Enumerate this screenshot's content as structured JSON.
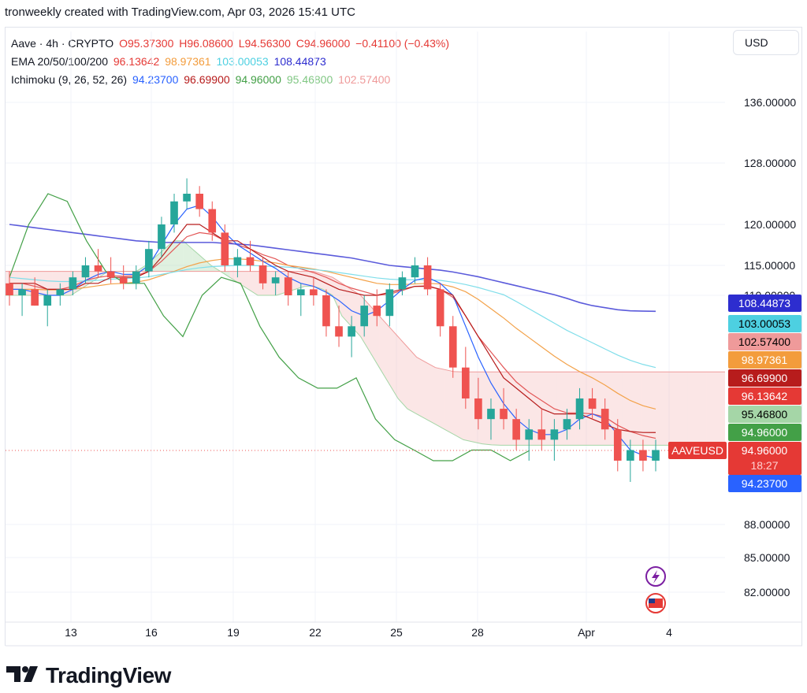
{
  "header": {
    "text": "tronweekly created with TradingView.com, Apr 03, 2026 15:41 UTC"
  },
  "legend": {
    "symbol": "Aave · 4h · CRYPTO",
    "o": "O95.37300",
    "h": "H96.08600",
    "l": "L94.56300",
    "c": "C94.96000",
    "change": "−0.41100 (−0.43%)",
    "ema_title": "EMA 20/50/100/200",
    "ema_values": [
      "96.13642",
      "98.97361",
      "103.00053",
      "108.44873"
    ],
    "ichi_title": "Ichimoku (9, 26, 52, 26)",
    "ichi_values": [
      "94.23700",
      "96.69900",
      "94.96000",
      "95.46800",
      "102.57400"
    ]
  },
  "currency": "USD",
  "footer": {
    "brand": "TradingView"
  },
  "colors": {
    "up": "#26a69a",
    "down": "#ef5350",
    "ema20": "#e35757",
    "ema50": "#f3a24a",
    "ema100": "#80deea",
    "ema200": "#5b5bdb",
    "tenkan": "#2962ff",
    "kijun": "#b71c1c",
    "chikou": "#43a047",
    "spanA": "#a5d6a7",
    "spanB": "#ef9a9a"
  },
  "chart_data": {
    "type": "line",
    "title": "Aave · 4h · CRYPTO",
    "timeframe": "4h",
    "y_ticks": [
      136,
      128,
      120,
      115,
      110,
      88,
      85,
      82
    ],
    "y_tick_labels": [
      "136.00000",
      "128.00000",
      "120.00000",
      "115.00000",
      "110.00000",
      "88.00000",
      "85.00000",
      "82.00000"
    ],
    "x_labels": [
      "13",
      "16",
      "19",
      "22",
      "25",
      "28",
      "Apr",
      "4"
    ],
    "last_price": 94.96,
    "symbol_tag": "AAVEUSD",
    "countdown": "18:27",
    "price_badges": [
      {
        "label": "108.44873",
        "value": 108.44873,
        "series": "EMA 200",
        "color": "#2d2dcf"
      },
      {
        "label": "103.00053",
        "value": 103.00053,
        "series": "EMA 100",
        "color": "#4dd0e1"
      },
      {
        "label": "102.57400",
        "value": 102.574,
        "series": "Ichimoku Span B",
        "color": "#ef9a9a"
      },
      {
        "label": "98.97361",
        "value": 98.97361,
        "series": "EMA 50",
        "color": "#f39c3c"
      },
      {
        "label": "96.69900",
        "value": 96.699,
        "series": "Kijun",
        "color": "#b71c1c"
      },
      {
        "label": "96.13642",
        "value": 96.13642,
        "series": "EMA 20",
        "color": "#e53935"
      },
      {
        "label": "95.46800",
        "value": 95.468,
        "series": "Ichimoku Span A",
        "color": "#a5d6a7"
      },
      {
        "label": "94.96000",
        "value": 94.96,
        "series": "Chikou",
        "color": "#43a047"
      },
      {
        "label": "94.96000",
        "value": 94.96,
        "series": "AAVEUSD",
        "color": "#e53935"
      },
      {
        "label": "94.23700",
        "value": 94.237,
        "series": "Tenkan",
        "color": "#2962ff"
      }
    ],
    "candles": [
      [
        112,
        114,
        109,
        110
      ],
      [
        110,
        112,
        108,
        111
      ],
      [
        111,
        113,
        109,
        109
      ],
      [
        109,
        111,
        107,
        110
      ],
      [
        110,
        112,
        109,
        111
      ],
      [
        111,
        114,
        110,
        113
      ],
      [
        113,
        116,
        112,
        115
      ],
      [
        115,
        117,
        113,
        114
      ],
      [
        114,
        116,
        112,
        113
      ],
      [
        113,
        115,
        111,
        112
      ],
      [
        112,
        115,
        111,
        114
      ],
      [
        114,
        118,
        113,
        117
      ],
      [
        117,
        121,
        116,
        120
      ],
      [
        120,
        124,
        119,
        123
      ],
      [
        123,
        126,
        122,
        124
      ],
      [
        124,
        125,
        121,
        122
      ],
      [
        122,
        123,
        118,
        119
      ],
      [
        119,
        120,
        114,
        115
      ],
      [
        115,
        117,
        113,
        116
      ],
      [
        116,
        118,
        114,
        115
      ],
      [
        115,
        116,
        111,
        112
      ],
      [
        112,
        114,
        110,
        113
      ],
      [
        113,
        114,
        109,
        110
      ],
      [
        110,
        112,
        108,
        111
      ],
      [
        111,
        113,
        109,
        110
      ],
      [
        110,
        111,
        106,
        107
      ],
      [
        107,
        109,
        105,
        106
      ],
      [
        106,
        108,
        104,
        107
      ],
      [
        107,
        110,
        106,
        109
      ],
      [
        109,
        111,
        107,
        108
      ],
      [
        108,
        112,
        107,
        111
      ],
      [
        111,
        114,
        110,
        113
      ],
      [
        113,
        116,
        112,
        115
      ],
      [
        115,
        116,
        110,
        111
      ],
      [
        111,
        112,
        106,
        107
      ],
      [
        107,
        108,
        102,
        103
      ],
      [
        103,
        105,
        99,
        100
      ],
      [
        100,
        102,
        97,
        98
      ],
      [
        98,
        100,
        96,
        99
      ],
      [
        99,
        101,
        97,
        98
      ],
      [
        98,
        99,
        95,
        96
      ],
      [
        96,
        98,
        94,
        97
      ],
      [
        97,
        99,
        95,
        96
      ],
      [
        96,
        98,
        94,
        97
      ],
      [
        97,
        99,
        96,
        98
      ],
      [
        98,
        101,
        97,
        100
      ],
      [
        100,
        101,
        98,
        99
      ],
      [
        99,
        100,
        96,
        97
      ],
      [
        97,
        98,
        93,
        94
      ],
      [
        94,
        96,
        92,
        95
      ],
      [
        95,
        96,
        93,
        94
      ],
      [
        94,
        96,
        93,
        95
      ]
    ],
    "series": [
      {
        "name": "EMA 20",
        "values": [
          112,
          112,
          111.5,
          111,
          111,
          111.5,
          112.5,
          113,
          113.3,
          113.2,
          113.3,
          114,
          115.5,
          117,
          118.5,
          119,
          118.8,
          118,
          117.5,
          117,
          116.3,
          115.8,
          115,
          114.4,
          113.8,
          113,
          112,
          111.2,
          110.6,
          110,
          110.2,
          110.8,
          111.5,
          111.6,
          111,
          109.8,
          108,
          106,
          104.5,
          103,
          101.6,
          100.6,
          99.8,
          99,
          98.6,
          98.6,
          98.5,
          98.2,
          97.4,
          96.8,
          96.4,
          96.13642
        ]
      },
      {
        "name": "EMA 50",
        "values": [
          111,
          111,
          111,
          110.9,
          110.9,
          111,
          111.3,
          111.6,
          111.9,
          112,
          112.2,
          112.6,
          113.3,
          114,
          114.8,
          115.3,
          115.6,
          115.8,
          115.8,
          115.7,
          115.5,
          115.3,
          115,
          114.7,
          114.4,
          114,
          113.5,
          113,
          112.5,
          112,
          111.8,
          111.8,
          111.9,
          112,
          111.9,
          111.4,
          110.6,
          109.6,
          108.7,
          107.8,
          106.8,
          105.9,
          105,
          104.1,
          103.3,
          102.6,
          102,
          101.3,
          100.5,
          99.8,
          99.3,
          98.97361
        ]
      },
      {
        "name": "EMA 100",
        "values": [
          113,
          112.8,
          112.6,
          112.4,
          112.3,
          112.3,
          112.4,
          112.5,
          112.7,
          112.8,
          112.9,
          113.1,
          113.5,
          113.9,
          114.3,
          114.6,
          114.8,
          114.9,
          115,
          115,
          114.9,
          114.8,
          114.7,
          114.5,
          114.3,
          114.1,
          113.8,
          113.5,
          113.2,
          112.9,
          112.7,
          112.6,
          112.6,
          112.6,
          112.5,
          112.2,
          111.8,
          111.3,
          110.7,
          110.1,
          109.4,
          108.7,
          108,
          107.3,
          106.6,
          106,
          105.4,
          104.8,
          104.2,
          103.7,
          103.3,
          103.00053
        ]
      },
      {
        "name": "EMA 200",
        "values": [
          120,
          119.8,
          119.6,
          119.4,
          119.2,
          119,
          118.8,
          118.6,
          118.4,
          118.2,
          118,
          117.9,
          117.8,
          117.8,
          117.8,
          117.8,
          117.8,
          117.7,
          117.6,
          117.5,
          117.3,
          117.1,
          116.9,
          116.7,
          116.5,
          116.3,
          116.1,
          115.9,
          115.6,
          115.3,
          115,
          114.8,
          114.6,
          114.4,
          114.2,
          113.9,
          113.5,
          113.1,
          112.6,
          112.1,
          111.6,
          111.1,
          110.6,
          110.1,
          109.7,
          109.3,
          109,
          108.8,
          108.6,
          108.5,
          108.47,
          108.44873
        ]
      },
      {
        "name": "Tenkan",
        "values": [
          111,
          111,
          110.5,
          110,
          110,
          111,
          112.5,
          113.5,
          114,
          113.5,
          113.5,
          115,
          117.5,
          120,
          122,
          122.5,
          121,
          119,
          117.5,
          116.5,
          115.5,
          114.5,
          113,
          112,
          111.5,
          110.5,
          109.5,
          108.5,
          108,
          108.5,
          109.5,
          111,
          112.5,
          113,
          112,
          110,
          107,
          104,
          101.5,
          99.5,
          98,
          97,
          96.5,
          96.5,
          97,
          98,
          98.5,
          98,
          96.5,
          95,
          94.5,
          94.237
        ]
      },
      {
        "name": "Kijun",
        "values": [
          112,
          112,
          112,
          111,
          111,
          111,
          112,
          112,
          113,
          113,
          113,
          114,
          116,
          118,
          120,
          120,
          119,
          118,
          118,
          117,
          116,
          115,
          114,
          113.5,
          113,
          112,
          111,
          110.5,
          110,
          110,
          110.5,
          111,
          111.5,
          111.5,
          111,
          110,
          108,
          106,
          104,
          102,
          101,
          100,
          99,
          98.5,
          98.5,
          98.5,
          98,
          97.5,
          97,
          96.8,
          96.7,
          96.699
        ]
      },
      {
        "name": "Chikou",
        "values": [
          113,
          120,
          124,
          123,
          118,
          114,
          112,
          112,
          108,
          106,
          110,
          113,
          112,
          107,
          104,
          102,
          101,
          101,
          102,
          98,
          96,
          95,
          94,
          94,
          95,
          95,
          94,
          94.96
        ]
      },
      {
        "name": "Span A",
        "values": [
          110,
          110,
          110,
          110,
          110,
          110,
          110,
          110,
          111,
          112,
          113,
          114,
          114,
          114,
          114,
          115,
          116,
          117,
          118,
          118,
          117,
          116,
          115,
          114,
          113,
          112,
          111,
          110,
          110,
          110,
          110.5,
          111,
          111.5,
          111.5,
          111,
          110,
          108,
          107,
          106,
          104.5,
          103,
          101.5,
          100,
          99,
          98.5,
          98,
          97.5,
          97,
          96.5,
          96,
          95.8,
          95.6,
          95.5,
          95.468,
          95.468,
          95.468,
          95.468,
          95.468,
          95.468,
          95.468,
          95.468,
          95.468,
          95.468,
          95.468,
          95.468,
          95.468,
          95.468,
          95.468,
          95.468,
          95.468,
          95.468,
          95.468,
          95.468,
          95.468,
          95.468,
          95.468,
          95.468,
          95.468
        ]
      },
      {
        "name": "Span B",
        "values": [
          114,
          114,
          114,
          114,
          114,
          114,
          114,
          114,
          114,
          114,
          114,
          114,
          114,
          114,
          114,
          114,
          114,
          114,
          114,
          114,
          114,
          114,
          114,
          114,
          114,
          114,
          114,
          114,
          114,
          114,
          114,
          114,
          114,
          114,
          113.5,
          113,
          112,
          111,
          110,
          109,
          108,
          107,
          106,
          105,
          104,
          103.5,
          103,
          102.8,
          102.6,
          102.574,
          102.574,
          102.574,
          102.574,
          102.574,
          102.574,
          102.574,
          102.574,
          102.574,
          102.574,
          102.574,
          102.574,
          102.574,
          102.574,
          102.574,
          102.574,
          102.574,
          102.574,
          102.574,
          102.574,
          102.574,
          102.574,
          102.574,
          102.574,
          102.574,
          102.574,
          102.574,
          102.574,
          102.574
        ]
      }
    ]
  }
}
